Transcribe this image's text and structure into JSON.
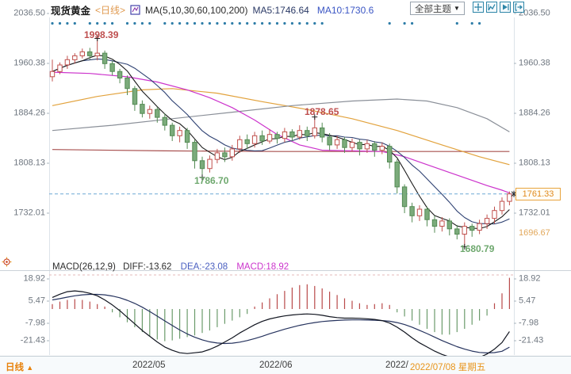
{
  "header": {
    "symbol": "现货黄金",
    "period_tag": "<日线>",
    "ma_settings": "MA(5,10,30,60,100,200)",
    "ma5_value": "MA5:1746.64",
    "ma10_value": "MA10:1730.6",
    "theme_button": "全部主题",
    "theme_arrow": "▼"
  },
  "icons": {
    "header_chart_icon": "kline-chart-icon",
    "toolbar": [
      "pan-crosshair-icon",
      "chart-zoom-icon",
      "play-forward-icon",
      "exit-right-icon"
    ],
    "macd_settings": "indicator-target-icon"
  },
  "main_chart": {
    "y_axis_labels": [
      "2036.50",
      "1960.38",
      "1884.26",
      "1808.13",
      "1732.01"
    ],
    "price_badge": "1761.33",
    "extra_right_label": "1696.67",
    "annotations": {
      "high_may": "1998.39",
      "high_june": "1878.65",
      "low_may": "1786.70",
      "low_july": "1680.79"
    }
  },
  "macd_panel": {
    "title": "MACD(26,12,9)",
    "diff_label": "DIFF:-13.62",
    "dea_label": "DEA:-23.08",
    "macd_label": "MACD:18.92",
    "y_axis_labels": [
      "18.92",
      "5.47",
      "-7.98",
      "-21.43"
    ]
  },
  "x_axis": {
    "label_may": "2022/05",
    "label_june": "2022/06",
    "label_july_partial": "2022/",
    "label_current": "2022/07/08 星期五"
  },
  "footer": {
    "period": "日线",
    "arrow": "▲"
  },
  "colors": {
    "candle_up": "#c0504d",
    "candle_down_fill": "#7bab7b",
    "candle_down_stroke": "#548b54",
    "ma5": "#1a1a1a",
    "ma10": "#2e4172",
    "ma30": "#cc33cc",
    "ma60": "#8a8f98",
    "ma100": "#e2a23c",
    "ma200": "#a8504f",
    "diff_line": "#10141f",
    "dea_line": "#26335e",
    "bar_positive": "#b94a4a",
    "bar_negative": "#6b9b6b",
    "price_dash": "#6fa8d6",
    "top_dots": "#2e7da8",
    "accent_orange": "#e8941a",
    "icon_border": "#2e86a8"
  },
  "chart_data": {
    "type": "candlestick+macd",
    "title": "现货黄金 日线 (Spot Gold Daily)",
    "price_axis_range": [
      1680,
      2036.5
    ],
    "current_price": 1761.33,
    "key_points": {
      "high": 1998.39,
      "june_high": 1878.65,
      "may_low": 1786.7,
      "july_low": 1680.79
    },
    "candles_ohlc": [
      [
        1940,
        1966,
        1933,
        1948
      ],
      [
        1948,
        1962,
        1944,
        1958
      ],
      [
        1958,
        1972,
        1952,
        1966
      ],
      [
        1966,
        1976,
        1960,
        1972
      ],
      [
        1972,
        1983,
        1968,
        1978
      ],
      [
        1978,
        1984,
        1966,
        1972
      ],
      [
        1972,
        1998.39,
        1965,
        1976
      ],
      [
        1976,
        1980,
        1952,
        1960
      ],
      [
        1960,
        1964,
        1942,
        1948
      ],
      [
        1948,
        1952,
        1930,
        1938
      ],
      [
        1938,
        1942,
        1912,
        1922
      ],
      [
        1922,
        1926,
        1888,
        1898
      ],
      [
        1898,
        1904,
        1878,
        1884
      ],
      [
        1884,
        1896,
        1876,
        1890
      ],
      [
        1890,
        1894,
        1870,
        1878
      ],
      [
        1878,
        1884,
        1858,
        1866
      ],
      [
        1866,
        1870,
        1842,
        1850
      ],
      [
        1850,
        1864,
        1840,
        1858
      ],
      [
        1858,
        1862,
        1830,
        1840
      ],
      [
        1840,
        1844,
        1800,
        1812
      ],
      [
        1812,
        1818,
        1786.7,
        1800
      ],
      [
        1800,
        1820,
        1794,
        1814
      ],
      [
        1814,
        1830,
        1808,
        1824
      ],
      [
        1824,
        1832,
        1810,
        1818
      ],
      [
        1818,
        1836,
        1812,
        1830
      ],
      [
        1830,
        1850,
        1824,
        1844
      ],
      [
        1844,
        1852,
        1830,
        1838
      ],
      [
        1838,
        1856,
        1832,
        1850
      ],
      [
        1850,
        1858,
        1836,
        1842
      ],
      [
        1842,
        1860,
        1838,
        1852
      ],
      [
        1852,
        1856,
        1838,
        1846
      ],
      [
        1846,
        1862,
        1840,
        1856
      ],
      [
        1856,
        1860,
        1842,
        1848
      ],
      [
        1848,
        1866,
        1844,
        1858
      ],
      [
        1858,
        1864,
        1842,
        1850
      ],
      [
        1850,
        1878.65,
        1846,
        1862
      ],
      [
        1862,
        1870,
        1840,
        1848
      ],
      [
        1848,
        1854,
        1828,
        1836
      ],
      [
        1836,
        1850,
        1830,
        1844
      ],
      [
        1844,
        1848,
        1824,
        1832
      ],
      [
        1832,
        1846,
        1826,
        1840
      ],
      [
        1840,
        1844,
        1820,
        1830
      ],
      [
        1830,
        1844,
        1824,
        1838
      ],
      [
        1838,
        1842,
        1818,
        1828
      ],
      [
        1828,
        1840,
        1822,
        1834
      ],
      [
        1834,
        1838,
        1800,
        1810
      ],
      [
        1810,
        1814,
        1762,
        1772
      ],
      [
        1772,
        1776,
        1732,
        1742
      ],
      [
        1742,
        1748,
        1718,
        1728
      ],
      [
        1728,
        1744,
        1720,
        1738
      ],
      [
        1738,
        1742,
        1712,
        1722
      ],
      [
        1722,
        1728,
        1702,
        1712
      ],
      [
        1712,
        1726,
        1704,
        1720
      ],
      [
        1720,
        1724,
        1698,
        1708
      ],
      [
        1708,
        1714,
        1692,
        1700
      ],
      [
        1700,
        1718,
        1680.79,
        1712
      ],
      [
        1712,
        1716,
        1696,
        1706
      ],
      [
        1706,
        1722,
        1700,
        1716
      ],
      [
        1716,
        1730,
        1708,
        1724
      ],
      [
        1724,
        1742,
        1716,
        1736
      ],
      [
        1736,
        1756,
        1730,
        1750
      ],
      [
        1750,
        1765,
        1744,
        1761.33
      ]
    ],
    "ma_computed": {
      "ma5_window": 5,
      "ma10_window": 10
    },
    "ma_lines": {
      "ma30": [
        [
          0,
          1947
        ],
        [
          5,
          1945
        ],
        [
          10,
          1940
        ],
        [
          14,
          1932
        ],
        [
          18,
          1920
        ],
        [
          21,
          1908
        ],
        [
          24,
          1893
        ],
        [
          27,
          1874
        ],
        [
          30,
          1852
        ],
        [
          33,
          1836
        ],
        [
          36,
          1828
        ],
        [
          40,
          1827
        ],
        [
          44,
          1826
        ],
        [
          47,
          1818
        ],
        [
          50,
          1806
        ],
        [
          53,
          1794
        ],
        [
          56,
          1782
        ],
        [
          58,
          1774
        ],
        [
          60,
          1767
        ],
        [
          61,
          1763
        ]
      ],
      "ma60": [
        [
          0,
          1858
        ],
        [
          8,
          1866
        ],
        [
          16,
          1876
        ],
        [
          24,
          1886
        ],
        [
          32,
          1896
        ],
        [
          40,
          1903
        ],
        [
          46,
          1906
        ],
        [
          50,
          1903
        ],
        [
          54,
          1893
        ],
        [
          58,
          1876
        ],
        [
          61,
          1856
        ]
      ],
      "ma100": [
        [
          0,
          1896
        ],
        [
          6,
          1910
        ],
        [
          12,
          1920
        ],
        [
          16,
          1922
        ],
        [
          22,
          1915
        ],
        [
          28,
          1902
        ],
        [
          34,
          1890
        ],
        [
          40,
          1876
        ],
        [
          46,
          1858
        ],
        [
          52,
          1836
        ],
        [
          57,
          1818
        ],
        [
          61,
          1806
        ]
      ],
      "ma200": [
        [
          0,
          1829
        ],
        [
          15,
          1827
        ],
        [
          30,
          1826
        ],
        [
          45,
          1826
        ],
        [
          61,
          1826
        ]
      ]
    },
    "extreme_markers": [
      [
        6,
        "high"
      ],
      [
        20,
        "low"
      ],
      [
        35,
        "high"
      ],
      [
        55,
        "low"
      ]
    ],
    "top_dot_indices": [
      0,
      1,
      2,
      3,
      5,
      6,
      7,
      8,
      10,
      11,
      12,
      13,
      15,
      16,
      17,
      18,
      19,
      20,
      21,
      22,
      23,
      24,
      25,
      26,
      27,
      28,
      29,
      30,
      31,
      32,
      33,
      34,
      35,
      36,
      45,
      47,
      48,
      54,
      56,
      57
    ],
    "macd": {
      "params": [
        26,
        12,
        9
      ],
      "diff_current": -13.62,
      "dea_current": -23.08,
      "macd_current": 18.92,
      "axis_range": [
        -21.43,
        18.92
      ],
      "diff": [
        7,
        9,
        10.5,
        11,
        10.5,
        9.5,
        8,
        5.5,
        2.5,
        -1,
        -5,
        -9,
        -13,
        -16.5,
        -20,
        -23,
        -25,
        -26.5,
        -27,
        -26.5,
        -26,
        -24.5,
        -22.5,
        -20,
        -17.5,
        -14.5,
        -12,
        -9.5,
        -7.5,
        -6,
        -5,
        -4.2,
        -3.6,
        -3.2,
        -3,
        -3.2,
        -3.8,
        -4.6,
        -5.2,
        -5.5,
        -5.5,
        -5.6,
        -5.9,
        -6.3,
        -7,
        -8.5,
        -11,
        -14,
        -17.5,
        -20.5,
        -23,
        -25.5,
        -27.5,
        -29,
        -30,
        -30.5,
        -30.3,
        -29.3,
        -27.3,
        -24.3,
        -20.3,
        -13.62
      ],
      "dea": [
        5.5,
        6.3,
        7.2,
        8,
        8.6,
        8.9,
        8.9,
        8.6,
        7.9,
        6.8,
        5.3,
        3.4,
        1.1,
        -1.5,
        -4.3,
        -7.2,
        -10,
        -12.7,
        -15.1,
        -17.1,
        -18.7,
        -19.9,
        -20.6,
        -20.9,
        -20.7,
        -20.1,
        -19.1,
        -17.9,
        -16.5,
        -15,
        -13.6,
        -12.2,
        -11,
        -9.9,
        -9,
        -8.2,
        -7.6,
        -7.2,
        -6.9,
        -6.7,
        -6.6,
        -6.6,
        -6.7,
        -6.8,
        -7,
        -7.4,
        -8.2,
        -9.4,
        -11,
        -12.9,
        -14.9,
        -17,
        -19.1,
        -21,
        -22.8,
        -24.3,
        -25.5,
        -26.3,
        -26.6,
        -26.4,
        -25.6,
        -23.08
      ],
      "bars": [
        3,
        4.5,
        5.5,
        6,
        5.5,
        4.5,
        3,
        1.5,
        -2,
        -5,
        -8,
        -11,
        -14,
        -16.5,
        -18.5,
        -19.5,
        -19,
        -18,
        -17,
        -16,
        -14.5,
        -13,
        -11,
        -9,
        -7,
        -5,
        -3,
        1.5,
        4,
        6.5,
        9,
        11,
        13,
        14.5,
        15,
        14,
        12.5,
        10.5,
        8.5,
        6.5,
        5,
        3.5,
        2.5,
        3,
        3.5,
        2.5,
        -2,
        -4.5,
        -7,
        -9.5,
        -12,
        -14,
        -15.5,
        -15.5,
        -14,
        -12,
        -9.5,
        -7,
        -4,
        3.5,
        9.5,
        18.92
      ]
    }
  }
}
